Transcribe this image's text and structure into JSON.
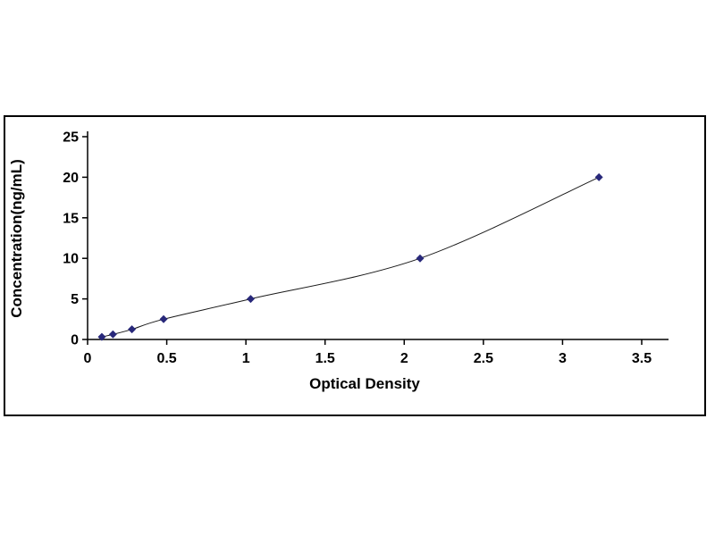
{
  "page": {
    "background": "#ffffff"
  },
  "chart_data": {
    "type": "line",
    "title": "",
    "xlabel": "Optical Density",
    "ylabel": "Concentration(ng/mL)",
    "x": [
      0.09,
      0.16,
      0.28,
      0.48,
      1.03,
      2.1,
      3.23
    ],
    "y": [
      0.31,
      0.63,
      1.25,
      2.5,
      5.0,
      10.0,
      20.0
    ],
    "xlim": [
      0,
      3.5
    ],
    "ylim": [
      0,
      25
    ],
    "xticks": [
      "0",
      "0.5",
      "1",
      "1.5",
      "2",
      "2.5",
      "3",
      "3.5"
    ],
    "yticks": [
      "0",
      "5",
      "10",
      "15",
      "20",
      "25"
    ],
    "grid": false,
    "legend": "none",
    "marker": "diamond",
    "marker_color": "#28287a",
    "line_color": "#1a1a1a",
    "axis_color": "#000000",
    "frame_border_color": "#000000",
    "text_color": "#000000"
  }
}
